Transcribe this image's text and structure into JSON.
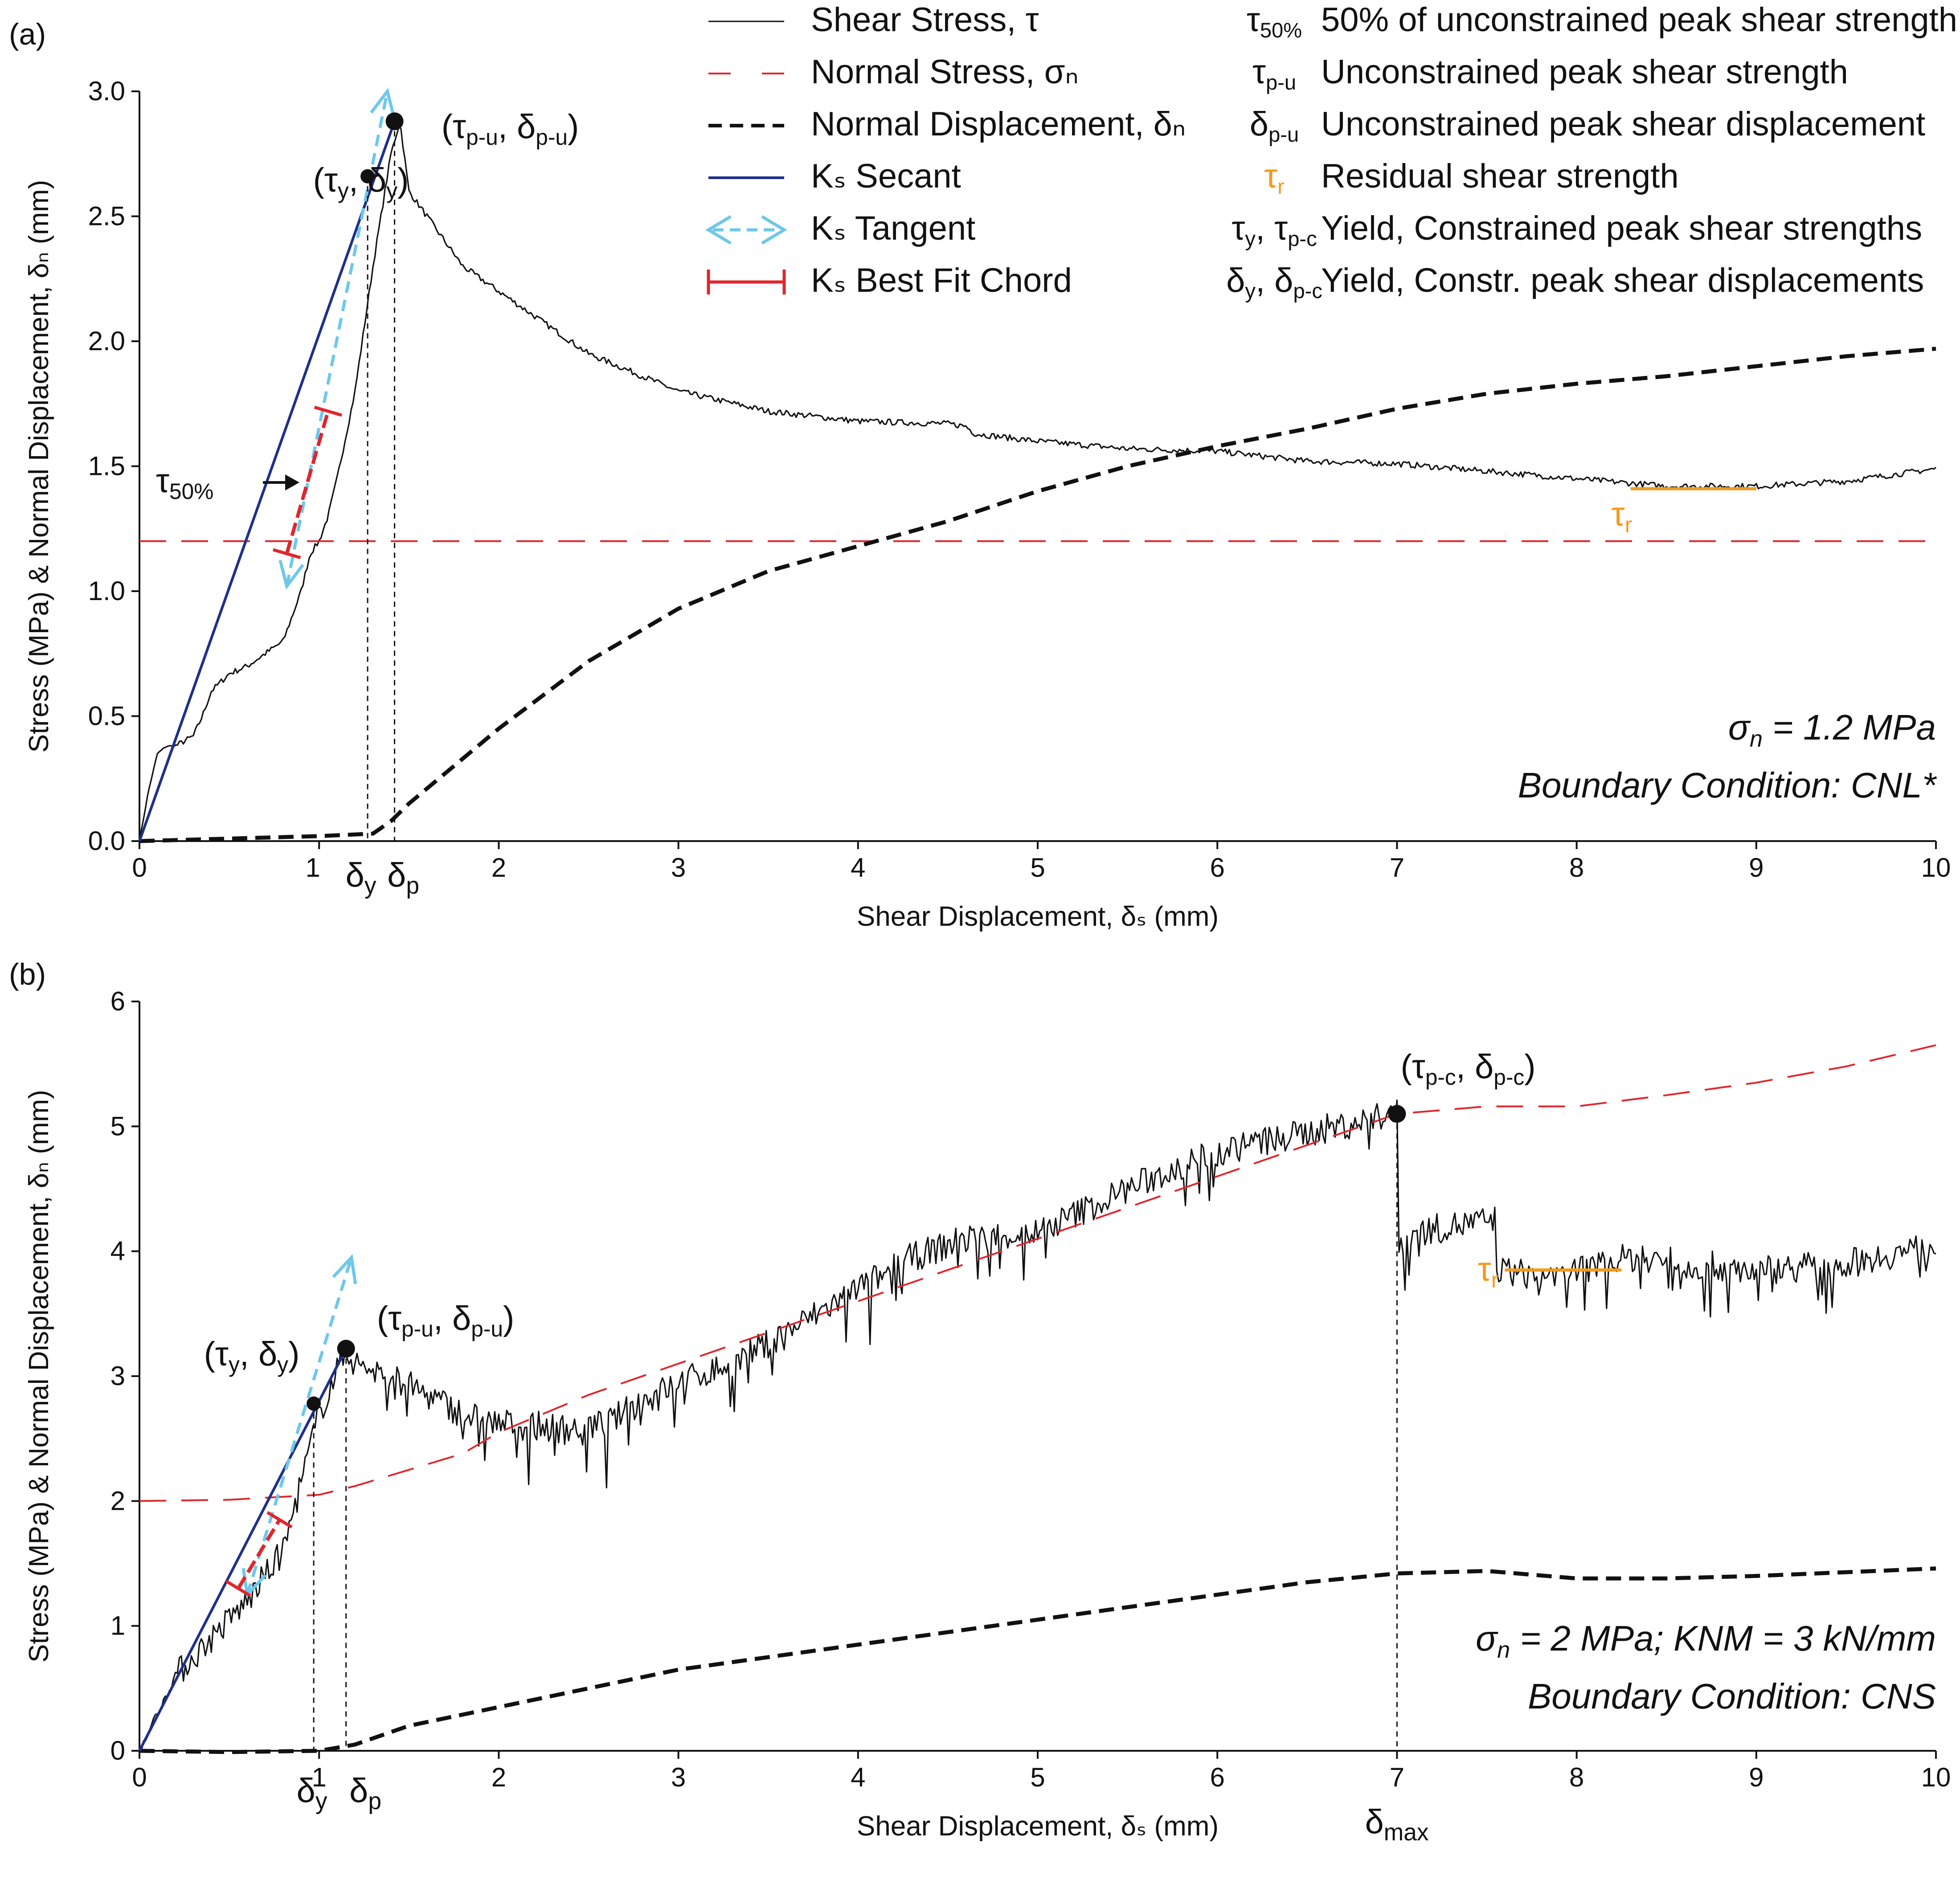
{
  "colors": {
    "shear": "#111111",
    "normal_stress": "#e0262c",
    "normal_disp": "#111111",
    "secant": "#1f2f8a",
    "tangent": "#6ec8ea",
    "chord": "#e0262c",
    "residual": "#f39a1e",
    "axis": "#111111"
  },
  "legend": {
    "left": [
      {
        "id": "shear",
        "label": "Shear Stress, τ"
      },
      {
        "id": "normal_stress",
        "label": "Normal Stress, σₙ"
      },
      {
        "id": "normal_disp",
        "label": "Normal Displacement, δₙ"
      },
      {
        "id": "secant",
        "label": "Kₛ Secant"
      },
      {
        "id": "tangent",
        "label": "Kₛ Tangent"
      },
      {
        "id": "chord",
        "label": "Kₛ Best Fit Chord"
      }
    ],
    "right": [
      {
        "sym": "τ",
        "sub": "50%",
        "label": "50% of unconstrained peak shear strength"
      },
      {
        "sym": "τ",
        "sub": "p-u",
        "label": "Unconstrained peak shear strength"
      },
      {
        "sym": "δ",
        "sub": "p-u",
        "label": "Unconstrained peak shear displacement"
      },
      {
        "sym": "τ",
        "sub": "r",
        "label": "Residual shear strength",
        "orange": true
      },
      {
        "sym": "τ",
        "sub": "y",
        "sym2": ", τ",
        "sub2": "p-c",
        "label": "Yield, Constrained peak shear strengths"
      },
      {
        "sym": "δ",
        "sub": "y",
        "sym2": ", δ",
        "sub2": "p-c",
        "label": "Yield, Constr. peak shear displacements"
      }
    ]
  },
  "chart_data": [
    {
      "panel": "(a)",
      "type": "line",
      "xlabel": "Shear Displacement, δₛ (mm)",
      "ylabel": "Stress (MPa) & Normal Displacement, δₙ (mm)",
      "xlim": [
        0,
        10
      ],
      "ylim": [
        0,
        3
      ],
      "xticks": [
        "0",
        "1",
        "2",
        "3",
        "4",
        "5",
        "6",
        "7",
        "8",
        "9",
        "10"
      ],
      "yticks": [
        "0.0",
        "0.5",
        "1.0",
        "1.5",
        "2.0",
        "2.5",
        "3.0"
      ],
      "condition_line1": "σn = 1.2 MPa",
      "condition_line2": "Boundary Condition: CNL*",
      "series": [
        {
          "name": "Shear Stress, τ",
          "key": "shear",
          "x": [
            0,
            0.05,
            0.1,
            0.15,
            0.2,
            0.3,
            0.35,
            0.4,
            0.5,
            0.6,
            0.7,
            0.8,
            0.9,
            0.95,
            1.0,
            1.05,
            1.1,
            1.2,
            1.3,
            1.4,
            1.45,
            1.5,
            1.6,
            1.8,
            2.0,
            2.2,
            2.5,
            3.0,
            3.5,
            4.0,
            4.5,
            4.6,
            4.65,
            5.0,
            5.5,
            6.0,
            6.5,
            7.0,
            7.5,
            8.0,
            8.5,
            9.0,
            9.5,
            10.0
          ],
          "y": [
            0,
            0.2,
            0.35,
            0.38,
            0.38,
            0.42,
            0.5,
            0.6,
            0.67,
            0.7,
            0.75,
            0.8,
            1.0,
            1.15,
            1.2,
            1.3,
            1.45,
            1.8,
            2.3,
            2.75,
            2.88,
            2.6,
            2.5,
            2.3,
            2.2,
            2.1,
            1.95,
            1.8,
            1.72,
            1.68,
            1.67,
            1.66,
            1.63,
            1.6,
            1.57,
            1.56,
            1.52,
            1.51,
            1.48,
            1.45,
            1.42,
            1.42,
            1.44,
            1.49
          ],
          "noise": 0.012
        },
        {
          "name": "Normal Stress, σn",
          "key": "normal_stress",
          "x": [
            0,
            10
          ],
          "y": [
            1.2,
            1.2
          ]
        },
        {
          "name": "Normal Displacement, δn",
          "key": "normal_disp",
          "x": [
            0,
            0.5,
            1.0,
            1.3,
            1.4,
            1.5,
            2.0,
            2.5,
            3.0,
            3.5,
            4.0,
            4.5,
            5.0,
            5.5,
            6.0,
            6.5,
            7.0,
            7.5,
            8.0,
            8.5,
            9.0,
            9.5,
            10.0
          ],
          "y": [
            0,
            0.01,
            0.02,
            0.03,
            0.08,
            0.15,
            0.45,
            0.72,
            0.93,
            1.08,
            1.18,
            1.28,
            1.4,
            1.5,
            1.58,
            1.65,
            1.73,
            1.79,
            1.83,
            1.86,
            1.9,
            1.94,
            1.97
          ]
        }
      ],
      "secant": {
        "x": [
          0,
          1.42
        ],
        "y": [
          0,
          2.88
        ]
      },
      "tangent": {
        "x": [
          0.82,
          1.38
        ],
        "y": [
          1.02,
          3.0
        ]
      },
      "chord": {
        "x": [
          0.82,
          1.05
        ],
        "y": [
          1.15,
          1.72
        ]
      },
      "residual": {
        "x": [
          8.3,
          9.0
        ],
        "y": [
          1.41,
          1.41
        ]
      },
      "points": [
        {
          "key": "yield",
          "x": 1.27,
          "y": 2.66,
          "label": "(τy, δy)"
        },
        {
          "key": "peak",
          "x": 1.42,
          "y": 2.88,
          "label": "(τp-u, δp-u)"
        }
      ],
      "annotations": {
        "t50_label": "τ50%",
        "t50_value": 1.44,
        "tr_label": "τr",
        "dy_label": "δy",
        "dp_label": "δp"
      }
    },
    {
      "panel": "(b)",
      "type": "line",
      "xlabel": "Shear Displacement, δₛ (mm)",
      "ylabel": "Stress (MPa) & Normal Displacement, δₙ (mm)",
      "xlim": [
        0,
        10
      ],
      "ylim": [
        0,
        6
      ],
      "xticks": [
        "0",
        "1",
        "2",
        "3",
        "4",
        "5",
        "6",
        "7",
        "8",
        "9",
        "10"
      ],
      "yticks": [
        "0",
        "1",
        "2",
        "3",
        "4",
        "5",
        "6"
      ],
      "condition_line1": "σn = 2 MPa; KNM = 3 kN/mm",
      "condition_line2": "Boundary Condition: CNS",
      "series": [
        {
          "name": "Shear Stress, τ",
          "key": "shear",
          "x": [
            0,
            0.2,
            0.4,
            0.6,
            0.8,
            1.0,
            1.15,
            1.2,
            1.4,
            1.6,
            1.8,
            2.0,
            2.2,
            2.4,
            2.6,
            2.8,
            3.0,
            3.3,
            3.6,
            4.0,
            4.3,
            4.6,
            5.0,
            5.5,
            6.0,
            6.5,
            7.0,
            7.01,
            7.1,
            7.3,
            7.55,
            7.56,
            7.8,
            8.0,
            8.3,
            8.6,
            9.0,
            9.5,
            10.0
          ],
          "y": [
            0,
            0.6,
            0.9,
            1.2,
            1.6,
            2.7,
            3.22,
            3.1,
            3.0,
            2.85,
            2.7,
            2.62,
            2.6,
            2.58,
            2.62,
            2.8,
            2.95,
            3.1,
            3.35,
            3.7,
            3.95,
            4.1,
            4.15,
            4.5,
            4.8,
            4.95,
            5.1,
            4.0,
            4.15,
            4.2,
            4.25,
            3.85,
            3.8,
            3.85,
            3.95,
            3.9,
            3.85,
            3.9,
            4.05
          ],
          "noise": 0.12
        },
        {
          "name": "Normal Stress, σn",
          "key": "normal_stress",
          "x": [
            0,
            0.5,
            1.0,
            1.2,
            1.5,
            1.8,
            2.0,
            2.5,
            3.0,
            3.5,
            4.0,
            4.5,
            5.0,
            5.5,
            6.0,
            6.5,
            7.0,
            7.5,
            8.0,
            8.5,
            9.0,
            9.5,
            10.0
          ],
          "y": [
            2.0,
            2.01,
            2.05,
            2.12,
            2.25,
            2.38,
            2.55,
            2.85,
            3.1,
            3.35,
            3.6,
            3.85,
            4.1,
            4.35,
            4.6,
            4.85,
            5.1,
            5.16,
            5.16,
            5.25,
            5.35,
            5.48,
            5.65
          ]
        },
        {
          "name": "Normal Displacement, δn",
          "key": "normal_disp",
          "x": [
            0,
            0.5,
            1.0,
            1.2,
            1.5,
            2.0,
            2.5,
            3.0,
            3.5,
            4.0,
            4.5,
            5.0,
            5.5,
            6.0,
            6.5,
            7.0,
            7.5,
            8.0,
            8.5,
            9.0,
            9.5,
            10.0
          ],
          "y": [
            0,
            -0.01,
            0,
            0.05,
            0.2,
            0.35,
            0.5,
            0.65,
            0.75,
            0.85,
            0.95,
            1.05,
            1.15,
            1.25,
            1.35,
            1.42,
            1.44,
            1.38,
            1.38,
            1.4,
            1.43,
            1.46
          ]
        }
      ],
      "secant": {
        "x": [
          0,
          1.15
        ],
        "y": [
          0,
          3.22
        ]
      },
      "tangent": {
        "x": [
          0.6,
          1.18
        ],
        "y": [
          1.25,
          3.95
        ]
      },
      "chord": {
        "x": [
          0.55,
          0.78
        ],
        "y": [
          1.3,
          1.85
        ]
      },
      "residual": {
        "x": [
          7.6,
          8.25
        ],
        "y": [
          3.85,
          3.85
        ]
      },
      "points": [
        {
          "key": "yield",
          "x": 0.97,
          "y": 2.78,
          "label": "(τy, δy)"
        },
        {
          "key": "peak",
          "x": 1.15,
          "y": 3.22,
          "label": "(τp-u, δp-u)"
        },
        {
          "key": "peak_c",
          "x": 7.0,
          "y": 5.1,
          "label": "(τp-c, δp-c)"
        }
      ],
      "annotations": {
        "tr_label": "τr",
        "dy_label": "δy",
        "dp_label": "δp",
        "dmax_label": "δmax"
      }
    }
  ]
}
